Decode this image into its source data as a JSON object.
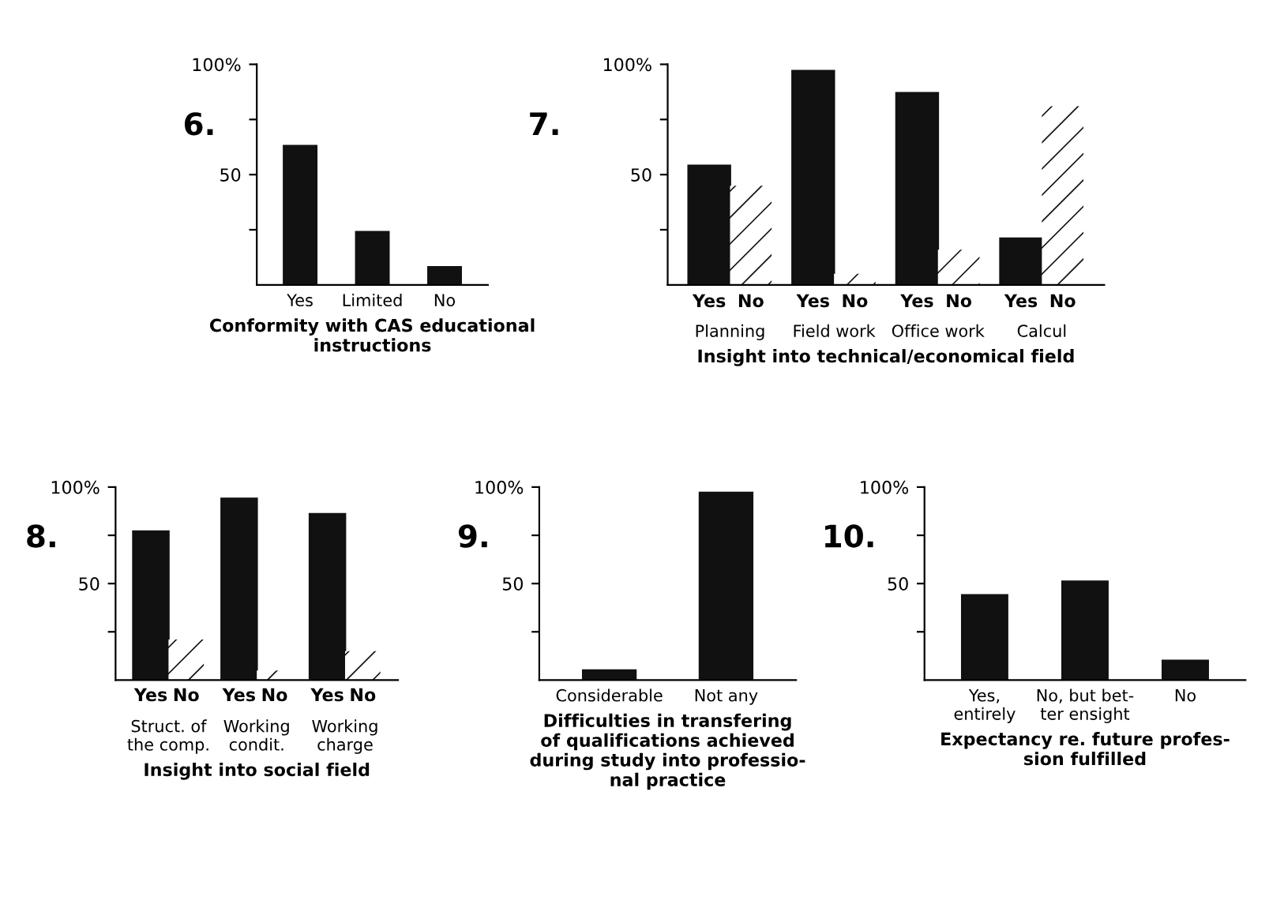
{
  "chart_data": [
    {
      "type": "bar",
      "title": "6.",
      "xlabel": "Conformity with CAS educational\ninstructions",
      "categories": [
        "Yes",
        "Limited",
        "No"
      ],
      "values": [
        63,
        24,
        8
      ],
      "color": "#111111",
      "ylim": [
        0,
        100
      ],
      "yticks": [
        {
          "value": 25,
          "label": null
        },
        {
          "value": 50,
          "label": "50"
        },
        {
          "value": 75,
          "label": null
        },
        {
          "value": 100,
          "label": "100%"
        }
      ],
      "grid": false,
      "legend": false
    },
    {
      "type": "bar",
      "title": "7.",
      "xlabel": "Insight into technical/economical field",
      "categories": [
        "Planning",
        "Field work",
        "Office work",
        "Calcul"
      ],
      "series": [
        {
          "name": "Yes",
          "color": "#111111",
          "values": [
            54,
            97,
            87,
            21
          ]
        },
        {
          "name": "No",
          "color": "#ffffff",
          "values": [
            45,
            5,
            16,
            81
          ]
        }
      ],
      "ylim": [
        0,
        100
      ],
      "yticks": [
        {
          "value": 25,
          "label": null
        },
        {
          "value": 50,
          "label": "50"
        },
        {
          "value": 75,
          "label": null
        },
        {
          "value": 100,
          "label": "100%"
        }
      ],
      "grid": false,
      "legend": false
    },
    {
      "type": "bar",
      "title": "8.",
      "xlabel": "Insight into social field",
      "categories": [
        "Struct. of\nthe comp.",
        "Working\ncondit.",
        "Working\ncharge"
      ],
      "series": [
        {
          "name": "Yes",
          "color": "#111111",
          "values": [
            77,
            94,
            86
          ]
        },
        {
          "name": "No",
          "color": "#ffffff",
          "values": [
            21,
            5,
            15
          ]
        }
      ],
      "ylim": [
        0,
        100
      ],
      "yticks": [
        {
          "value": 25,
          "label": null
        },
        {
          "value": 50,
          "label": "50"
        },
        {
          "value": 75,
          "label": null
        },
        {
          "value": 100,
          "label": "100%"
        }
      ],
      "grid": false,
      "legend": false
    },
    {
      "type": "bar",
      "title": "9.",
      "xlabel": "Difficulties in transfering\nof qualifications achieved\nduring study into professio-\nnal practice",
      "categories": [
        "Considerable",
        "Not any"
      ],
      "values": [
        5,
        97
      ],
      "color": "#111111",
      "ylim": [
        0,
        100
      ],
      "yticks": [
        {
          "value": 25,
          "label": null
        },
        {
          "value": 50,
          "label": "50"
        },
        {
          "value": 75,
          "label": null
        },
        {
          "value": 100,
          "label": "100%"
        }
      ],
      "grid": false,
      "legend": false
    },
    {
      "type": "bar",
      "title": "10.",
      "xlabel": "Expectancy re. future profes-\nsion fulfilled",
      "categories": [
        "Yes,\nentirely",
        "No, but bet-\nter ensight",
        "No"
      ],
      "values": [
        44,
        51,
        10
      ],
      "color": "#111111",
      "ylim": [
        0,
        100
      ],
      "yticks": [
        {
          "value": 25,
          "label": null
        },
        {
          "value": 50,
          "label": "50"
        },
        {
          "value": 75,
          "label": null
        },
        {
          "value": 100,
          "label": "100%"
        }
      ],
      "grid": false,
      "legend": false
    }
  ]
}
